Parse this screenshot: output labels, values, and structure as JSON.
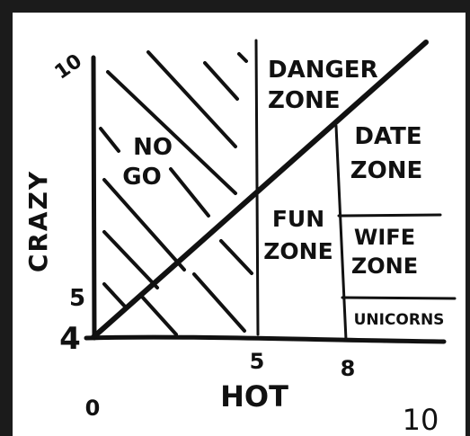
{
  "colors": {
    "frame": "#1b1b1b",
    "paper": "#ffffff",
    "ink": "#111111"
  },
  "axes": {
    "y_label": "CRAZY",
    "x_label": "HOT",
    "y_ticks": {
      "top": "10",
      "five": "5",
      "four": "4"
    },
    "x_ticks": {
      "zero": "0",
      "five": "5",
      "eight": "8",
      "ten": "10"
    }
  },
  "zones": {
    "no_go": [
      "NO",
      "GO"
    ],
    "danger": [
      "DANGER",
      "ZONE"
    ],
    "fun": [
      "FUN",
      "ZONE"
    ],
    "date": [
      "DATE",
      "ZONE"
    ],
    "wife": [
      "WIFE",
      "ZONE"
    ],
    "unicorns": "UNICORNS"
  }
}
